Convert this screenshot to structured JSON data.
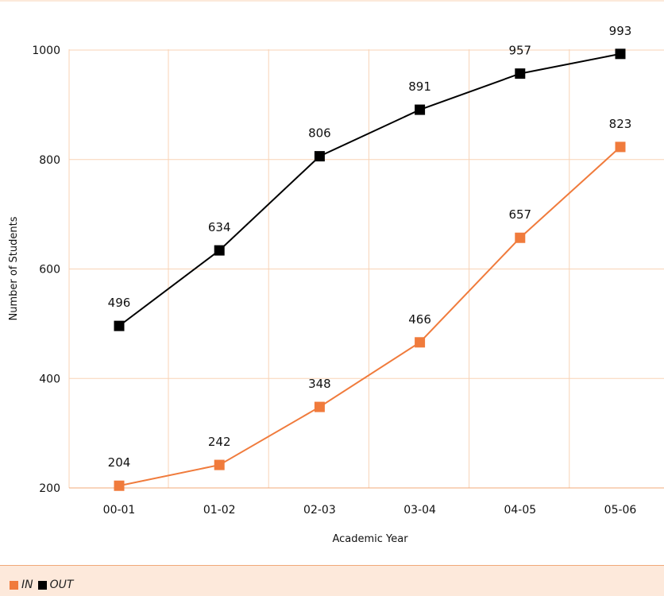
{
  "chart_data": {
    "type": "line",
    "categories": [
      "00-01",
      "01-02",
      "02-03",
      "03-04",
      "04-05",
      "05-06"
    ],
    "series": [
      {
        "name": "IN",
        "color": "#f07b3c",
        "values": [
          204,
          242,
          348,
          466,
          657,
          823
        ]
      },
      {
        "name": "OUT",
        "color": "#000000",
        "values": [
          496,
          634,
          806,
          891,
          957,
          993
        ]
      }
    ],
    "xlabel": "Academic Year",
    "ylabel": "Number of Students",
    "ylim": [
      200,
      1000
    ],
    "yticks": [
      200,
      400,
      600,
      800,
      1000
    ],
    "grid": true,
    "gridColor": "#f8d3b6",
    "legend": "bottom-left"
  }
}
